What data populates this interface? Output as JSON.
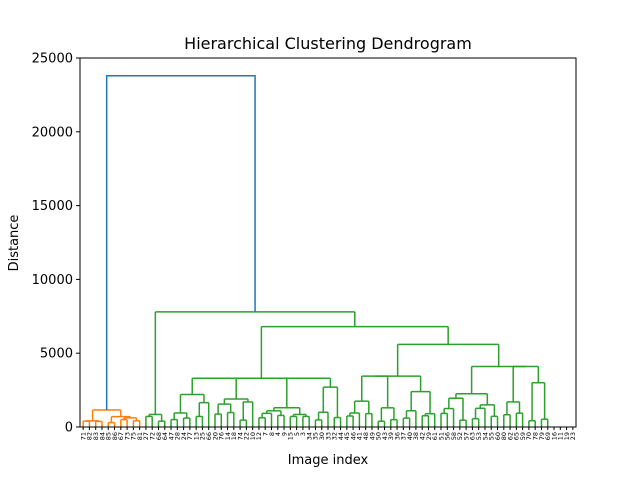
{
  "chart_data": {
    "type": "dendrogram",
    "title": "Hierarchical Clustering Dendrogram",
    "xlabel": "Image index",
    "ylabel": "Distance",
    "ylim": [
      0,
      25000
    ],
    "y_ticks": [
      0,
      5000,
      10000,
      15000,
      20000,
      25000
    ],
    "y_tick_labels": [
      "0",
      "5000",
      "10000",
      "15000",
      "20000",
      "25000"
    ],
    "leaf_labels": [
      "71",
      "82",
      "83",
      "84",
      "85",
      "86",
      "67",
      "73",
      "75",
      "81",
      "27",
      "72",
      "68",
      "64",
      "47",
      "28",
      "24",
      "77",
      "13",
      "25",
      "66",
      "20",
      "76",
      "14",
      "18",
      "74",
      "22",
      "10",
      "12",
      "7",
      "8",
      "4",
      "9",
      "15",
      "5",
      "3",
      "34",
      "35",
      "30",
      "33",
      "32",
      "44",
      "45",
      "46",
      "41",
      "48",
      "49",
      "50",
      "43",
      "39",
      "36",
      "37",
      "40",
      "38",
      "42",
      "29",
      "61",
      "51",
      "56",
      "58",
      "52",
      "57",
      "63",
      "53",
      "54",
      "55",
      "60",
      "80",
      "62",
      "65",
      "59",
      "70",
      "78",
      "79",
      "69",
      "16",
      "11",
      "19",
      "23"
    ],
    "colors": {
      "orange_cluster": "#ff7f0e",
      "green_cluster": "#2ca02c",
      "root_link": "#1f77b4"
    },
    "merges": [
      {
        "cluster": "orange",
        "height": 1150,
        "label_count": 10
      },
      {
        "cluster": "green",
        "height": 7800,
        "label_count": 69
      },
      {
        "cluster": "root",
        "height": 23800
      }
    ]
  }
}
